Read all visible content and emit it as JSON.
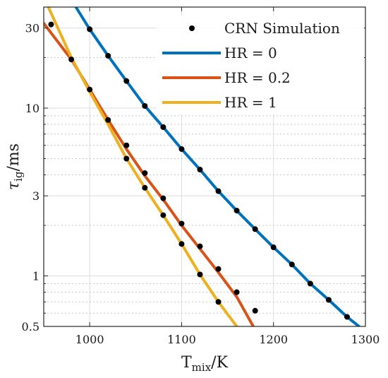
{
  "chart_data": {
    "type": "line",
    "xlabel": "T",
    "xlabel_sub": "mix",
    "xlabel_unit": "/K",
    "ylabel": "τ",
    "ylabel_sub": "ig",
    "ylabel_unit": "/ms",
    "xlim": [
      950,
      1300
    ],
    "ylim": [
      0.5,
      40
    ],
    "yscale": "log",
    "grid": true,
    "legend_position": "top-right",
    "x_ticks": [
      1000,
      1100,
      1200,
      1300
    ],
    "x_tick_labels": [
      "1000",
      "1100",
      "1200",
      "1300"
    ],
    "y_major_ticks": [
      0.5,
      1,
      3,
      10,
      30
    ],
    "y_tick_labels": [
      "0.5",
      "1",
      "3",
      "10",
      "30"
    ],
    "y_minor_ticks": [
      0.6,
      0.7,
      0.8,
      0.9,
      2,
      4,
      5,
      6,
      7,
      8,
      9,
      20
    ],
    "series": [
      {
        "name": "CRN Simulation",
        "kind": "scatter",
        "color": "#000000",
        "points": [
          [
            1000,
            29.5
          ],
          [
            1020,
            20.5
          ],
          [
            1040,
            14.5
          ],
          [
            1060,
            10.3
          ],
          [
            1080,
            7.7
          ],
          [
            1100,
            5.7
          ],
          [
            1120,
            4.3
          ],
          [
            1140,
            3.2
          ],
          [
            1160,
            2.45
          ],
          [
            1180,
            1.9
          ],
          [
            1200,
            1.48
          ],
          [
            1220,
            1.17
          ],
          [
            1240,
            0.9
          ],
          [
            1260,
            0.72
          ],
          [
            1280,
            0.57
          ],
          [
            958,
            31.5
          ],
          [
            980,
            19.5
          ],
          [
            1000,
            12.9
          ],
          [
            1020,
            8.5
          ],
          [
            1040,
            6.0
          ],
          [
            1060,
            4.1
          ],
          [
            1080,
            2.9
          ],
          [
            1100,
            2.05
          ],
          [
            1120,
            1.5
          ],
          [
            1140,
            1.1
          ],
          [
            1160,
            0.8
          ],
          [
            1180,
            0.62
          ],
          [
            1040,
            5.0
          ],
          [
            1060,
            3.35
          ],
          [
            1080,
            2.3
          ],
          [
            1100,
            1.55
          ],
          [
            1120,
            1.02
          ],
          [
            1140,
            0.7
          ]
        ]
      },
      {
        "name": "HR = 0",
        "kind": "line",
        "color": "#0072BD",
        "points": [
          [
            985,
            40
          ],
          [
            1000,
            29.5
          ],
          [
            1020,
            20.5
          ],
          [
            1040,
            14.5
          ],
          [
            1060,
            10.3
          ],
          [
            1080,
            7.7
          ],
          [
            1100,
            5.7
          ],
          [
            1120,
            4.3
          ],
          [
            1140,
            3.2
          ],
          [
            1160,
            2.45
          ],
          [
            1180,
            1.9
          ],
          [
            1200,
            1.48
          ],
          [
            1220,
            1.17
          ],
          [
            1240,
            0.9
          ],
          [
            1260,
            0.72
          ],
          [
            1280,
            0.57
          ],
          [
            1293,
            0.5
          ]
        ]
      },
      {
        "name": "HR = 0.2",
        "kind": "line",
        "color": "#D95319",
        "points": [
          [
            950,
            32
          ],
          [
            980,
            19.5
          ],
          [
            1000,
            12.9
          ],
          [
            1020,
            8.5
          ],
          [
            1040,
            5.7
          ],
          [
            1060,
            3.95
          ],
          [
            1080,
            2.85
          ],
          [
            1100,
            2.0
          ],
          [
            1120,
            1.45
          ],
          [
            1140,
            1.05
          ],
          [
            1160,
            0.75
          ],
          [
            1178,
            0.5
          ]
        ]
      },
      {
        "name": "HR = 1",
        "kind": "line",
        "color": "#EDB120",
        "points": [
          [
            955,
            40
          ],
          [
            980,
            20
          ],
          [
            1000,
            12.5
          ],
          [
            1020,
            8.0
          ],
          [
            1040,
            5.0
          ],
          [
            1060,
            3.35
          ],
          [
            1080,
            2.3
          ],
          [
            1100,
            1.55
          ],
          [
            1120,
            1.02
          ],
          [
            1140,
            0.7
          ],
          [
            1160,
            0.5
          ]
        ]
      }
    ]
  }
}
